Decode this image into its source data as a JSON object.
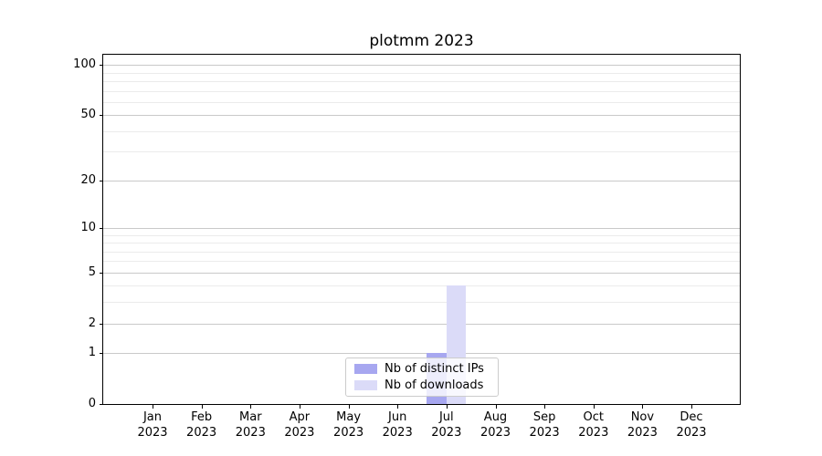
{
  "chart_data": {
    "type": "bar",
    "title": "plotmm 2023",
    "x_months": [
      "Jan",
      "Feb",
      "Mar",
      "Apr",
      "May",
      "Jun",
      "Jul",
      "Aug",
      "Sep",
      "Oct",
      "Nov",
      "Dec"
    ],
    "x_year": "2023",
    "series": [
      {
        "name": "Nb of distinct IPs",
        "color": "#a7a7f0",
        "values": [
          0,
          0,
          0,
          0,
          0,
          0,
          1,
          0,
          0,
          0,
          0,
          0
        ]
      },
      {
        "name": "Nb of downloads",
        "color": "#dbdbf8",
        "values": [
          0,
          0,
          0,
          0,
          0,
          0,
          4,
          0,
          0,
          0,
          0,
          0
        ]
      }
    ],
    "yscale": "log1p",
    "ylim": [
      0,
      115
    ],
    "yticks_major": [
      0,
      1,
      2,
      5,
      10,
      20,
      50,
      100
    ],
    "yticks_minor": [
      3,
      4,
      6,
      7,
      8,
      9,
      30,
      40,
      60,
      70,
      80,
      90
    ],
    "grid": {
      "major_color": "#c9c9c9",
      "minor_color": "#ebebeb"
    },
    "legend_position": "lower center",
    "axis_color": "#000000",
    "background_color": "#ffffff"
  }
}
